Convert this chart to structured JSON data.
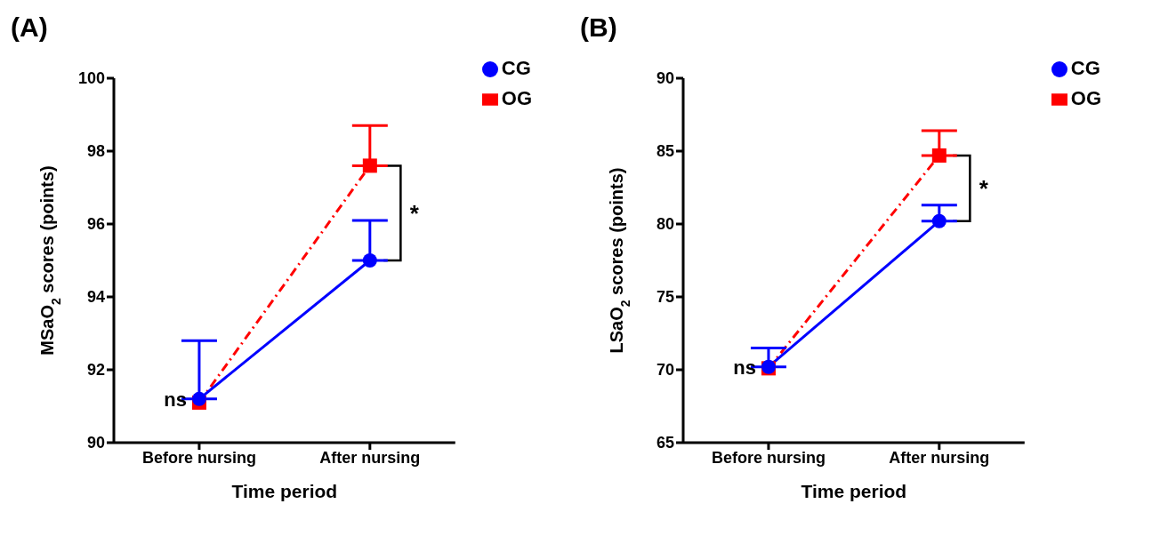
{
  "chart_data": [
    {
      "type": "line",
      "title": "(A)",
      "xlabel": "Time period",
      "ylabel": "MSaO$_{2}$ scores (points)",
      "categories": [
        "Before nursing",
        "After nursing"
      ],
      "ylim": [
        90,
        100
      ],
      "yticks": [
        90,
        92,
        94,
        96,
        98,
        100
      ],
      "legend": "top right",
      "grid": false,
      "series": [
        {
          "name": "CG",
          "color": "#0000ff",
          "values": [
            91.2,
            95.0
          ],
          "errors": [
            [
              91.2,
              92.8
            ],
            [
              95.0,
              96.1
            ]
          ],
          "marker": "circle",
          "line_style": "solid"
        },
        {
          "name": "OG",
          "color": "#ff0000",
          "values": [
            91.1,
            97.6
          ],
          "errors": [
            null,
            [
              97.6,
              98.7
            ]
          ],
          "marker": "square",
          "line_style": "dashed"
        }
      ],
      "annotations": [
        {
          "text": "ns",
          "x": "Before nursing",
          "y": 91.2
        },
        "*"
      ]
    },
    {
      "type": "line",
      "title": "(B)",
      "xlabel": "Time period",
      "ylabel": "LSaO$_{2}$ scores (points)",
      "categories": [
        "Before nursing",
        "After nursing"
      ],
      "ylim": [
        65,
        90
      ],
      "yticks": [
        65,
        70,
        75,
        80,
        85,
        90
      ],
      "legend": "top right",
      "grid": false,
      "series": [
        {
          "name": "CG",
          "color": "#0000ff",
          "values": [
            70.2,
            80.2
          ],
          "errors": [
            [
              70.2,
              71.5
            ],
            [
              80.2,
              81.3
            ]
          ],
          "marker": "circle",
          "line_style": "solid"
        },
        {
          "name": "OG",
          "color": "#ff0000",
          "values": [
            70.1,
            84.7
          ],
          "errors": [
            null,
            [
              84.7,
              86.4
            ]
          ],
          "marker": "square",
          "line_style": "dashed"
        }
      ],
      "annotations": [
        {
          "text": "ns",
          "x": "Before nursing",
          "y": 70.2
        },
        "*"
      ]
    }
  ]
}
